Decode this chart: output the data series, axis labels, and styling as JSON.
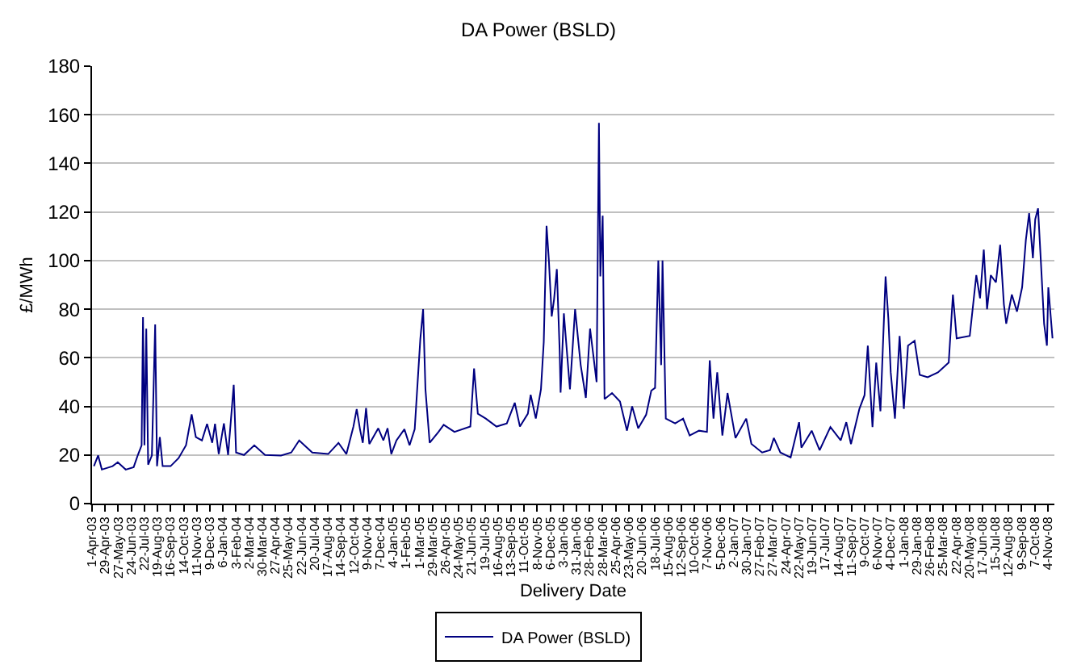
{
  "chart_data": {
    "type": "line",
    "title": "DA Power (BSLD)",
    "xlabel": "Delivery Date",
    "ylabel": "£/MWh",
    "x": [
      "2003-04-05",
      "2003-04-14",
      "2003-04-22",
      "2003-05-15",
      "2003-05-26",
      "2003-06-12",
      "2003-06-29",
      "2003-07-08",
      "2003-07-16",
      "2003-07-19",
      "2003-07-22",
      "2003-07-26",
      "2003-07-30",
      "2003-08-07",
      "2003-08-14",
      "2003-08-18",
      "2003-08-24",
      "2003-08-30",
      "2003-09-16",
      "2003-10-03",
      "2003-10-19",
      "2003-10-31",
      "2003-11-09",
      "2003-11-22",
      "2003-12-03",
      "2003-12-14",
      "2003-12-20",
      "2003-12-28",
      "2004-01-08",
      "2004-01-17",
      "2004-01-29",
      "2004-02-03",
      "2004-02-20",
      "2004-03-13",
      "2004-04-05",
      "2004-05-09",
      "2004-05-31",
      "2004-06-17",
      "2004-07-15",
      "2004-08-18",
      "2004-09-09",
      "2004-09-26",
      "2004-10-11",
      "2004-10-18",
      "2004-10-25",
      "2004-10-31",
      "2004-11-07",
      "2004-11-14",
      "2004-12-03",
      "2004-12-14",
      "2004-12-23",
      "2004-12-31",
      "2005-01-11",
      "2005-01-28",
      "2005-02-08",
      "2005-02-19",
      "2005-03-03",
      "2005-03-09",
      "2005-03-14",
      "2005-03-23",
      "2005-04-11",
      "2005-04-22",
      "2005-05-15",
      "2005-06-18",
      "2005-06-26",
      "2005-07-04",
      "2005-07-21",
      "2005-08-13",
      "2005-09-04",
      "2005-09-21",
      "2005-10-02",
      "2005-10-19",
      "2005-10-25",
      "2005-11-05",
      "2005-11-16",
      "2005-11-22",
      "2005-11-28",
      "2005-12-03",
      "2005-12-09",
      "2005-12-14",
      "2005-12-20",
      "2005-12-26",
      "2005-12-28",
      "2006-01-04",
      "2006-01-17",
      "2006-01-28",
      "2006-02-09",
      "2006-02-20",
      "2006-03-01",
      "2006-03-15",
      "2006-03-20",
      "2006-03-23",
      "2006-03-28",
      "2006-04-01",
      "2006-04-17",
      "2006-05-04",
      "2006-05-19",
      "2006-05-30",
      "2006-06-12",
      "2006-06-29",
      "2006-07-10",
      "2006-07-18",
      "2006-07-25",
      "2006-07-31",
      "2006-08-03",
      "2006-08-10",
      "2006-08-30",
      "2006-09-16",
      "2006-09-30",
      "2006-10-20",
      "2006-11-06",
      "2006-11-12",
      "2006-11-20",
      "2006-11-28",
      "2006-12-09",
      "2006-12-20",
      "2007-01-06",
      "2007-01-29",
      "2007-02-09",
      "2007-03-04",
      "2007-03-21",
      "2007-03-29",
      "2007-04-12",
      "2007-05-04",
      "2007-05-22",
      "2007-05-27",
      "2007-06-18",
      "2007-07-05",
      "2007-07-28",
      "2007-08-19",
      "2007-08-31",
      "2007-09-10",
      "2007-09-28",
      "2007-10-09",
      "2007-10-16",
      "2007-10-26",
      "2007-11-03",
      "2007-11-12",
      "2007-11-23",
      "2007-11-29",
      "2007-12-04",
      "2007-12-13",
      "2007-12-23",
      "2008-01-01",
      "2008-01-10",
      "2008-01-24",
      "2008-02-04",
      "2008-02-21",
      "2008-03-14",
      "2008-04-06",
      "2008-04-15",
      "2008-04-23",
      "2008-05-21",
      "2008-06-04",
      "2008-06-12",
      "2008-06-20",
      "2008-06-27",
      "2008-07-05",
      "2008-07-16",
      "2008-07-25",
      "2008-08-02",
      "2008-08-07",
      "2008-08-19",
      "2008-08-30",
      "2008-09-10",
      "2008-09-18",
      "2008-09-25",
      "2008-10-03",
      "2008-10-08",
      "2008-10-14",
      "2008-10-20",
      "2008-10-27",
      "2008-11-02",
      "2008-11-05",
      "2008-11-14"
    ],
    "series": [
      {
        "name": "DA Power (BSLD)",
        "color": "#000080",
        "values": [
          15.4,
          19.8,
          14,
          15.4,
          17,
          14,
          15,
          20,
          24,
          76.7,
          24,
          72,
          16,
          19.8,
          73.7,
          15.4,
          27.4,
          15.4,
          15.4,
          18.7,
          24,
          36.7,
          27.4,
          26,
          32.8,
          25,
          32.8,
          20.4,
          33,
          20,
          48.9,
          21,
          20,
          24,
          20,
          19.8,
          21,
          26,
          21,
          20.4,
          25,
          20.4,
          31.7,
          38.9,
          30.6,
          25,
          39.3,
          24.5,
          31,
          26,
          31,
          20.4,
          26,
          30.6,
          24,
          30.6,
          67.6,
          80,
          47,
          25,
          29.5,
          32.4,
          29.5,
          31.7,
          55.6,
          37,
          35,
          31.7,
          33,
          41.5,
          31.7,
          37,
          44.8,
          35,
          47,
          66.5,
          114.3,
          100,
          77,
          84,
          96.5,
          63,
          45.7,
          78.3,
          47,
          80,
          57,
          43.5,
          72,
          50,
          156.7,
          93.5,
          118.5,
          43,
          45.5,
          42,
          30,
          40,
          31,
          36.6,
          46.5,
          47.6,
          100,
          57,
          100,
          35,
          33,
          35,
          28,
          30,
          29.5,
          58.9,
          35,
          54,
          28,
          45.5,
          27,
          35,
          24.6,
          21,
          22,
          27,
          21,
          19,
          33.5,
          23,
          30,
          22,
          31.5,
          26,
          33.5,
          24.5,
          39,
          44.6,
          65,
          31.5,
          58,
          38,
          93.5,
          76,
          54,
          35,
          69,
          39,
          65,
          67,
          53,
          52,
          54,
          58,
          86,
          68,
          69,
          94,
          84.5,
          104.5,
          80,
          94,
          91,
          106.5,
          82,
          74,
          86,
          79,
          89,
          108.5,
          119.5,
          101,
          117,
          121.5,
          100,
          74,
          65,
          89,
          68
        ]
      }
    ],
    "xlim": [
      "2003-04-01",
      "2008-11-18"
    ],
    "xticks": [
      {
        "value": "2003-04-01",
        "label": "1-Apr-03"
      },
      {
        "value": "2003-04-29",
        "label": "29-Apr-03"
      },
      {
        "value": "2003-05-27",
        "label": "27-May-03"
      },
      {
        "value": "2003-06-24",
        "label": "24-Jun-03"
      },
      {
        "value": "2003-07-22",
        "label": "22-Jul-03"
      },
      {
        "value": "2003-08-19",
        "label": "19-Aug-03"
      },
      {
        "value": "2003-09-16",
        "label": "16-Sep-03"
      },
      {
        "value": "2003-10-14",
        "label": "14-Oct-03"
      },
      {
        "value": "2003-11-11",
        "label": "11-Nov-03"
      },
      {
        "value": "2003-12-09",
        "label": "9-Dec-03"
      },
      {
        "value": "2004-01-06",
        "label": "6-Jan-04"
      },
      {
        "value": "2004-02-03",
        "label": "3-Feb-04"
      },
      {
        "value": "2004-03-02",
        "label": "2-Mar-04"
      },
      {
        "value": "2004-03-30",
        "label": "30-Mar-04"
      },
      {
        "value": "2004-04-27",
        "label": "27-Apr-04"
      },
      {
        "value": "2004-05-25",
        "label": "25-May-04"
      },
      {
        "value": "2004-06-22",
        "label": "22-Jun-04"
      },
      {
        "value": "2004-07-20",
        "label": "20-Jul-04"
      },
      {
        "value": "2004-08-17",
        "label": "17-Aug-04"
      },
      {
        "value": "2004-09-14",
        "label": "14-Sep-04"
      },
      {
        "value": "2004-10-12",
        "label": "12-Oct-04"
      },
      {
        "value": "2004-11-09",
        "label": "9-Nov-04"
      },
      {
        "value": "2004-12-07",
        "label": "7-Dec-04"
      },
      {
        "value": "2005-01-04",
        "label": "4-Jan-05"
      },
      {
        "value": "2005-02-01",
        "label": "1-Feb-05"
      },
      {
        "value": "2005-03-01",
        "label": "1-Mar-05"
      },
      {
        "value": "2005-03-29",
        "label": "29-Mar-05"
      },
      {
        "value": "2005-04-26",
        "label": "26-Apr-05"
      },
      {
        "value": "2005-05-24",
        "label": "24-May-05"
      },
      {
        "value": "2005-06-21",
        "label": "21-Jun-05"
      },
      {
        "value": "2005-07-19",
        "label": "19-Jul-05"
      },
      {
        "value": "2005-08-16",
        "label": "16-Aug-05"
      },
      {
        "value": "2005-09-13",
        "label": "13-Sep-05"
      },
      {
        "value": "2005-10-11",
        "label": "11-Oct-05"
      },
      {
        "value": "2005-11-08",
        "label": "8-Nov-05"
      },
      {
        "value": "2005-12-06",
        "label": "6-Dec-05"
      },
      {
        "value": "2006-01-03",
        "label": "3-Jan-06"
      },
      {
        "value": "2006-01-31",
        "label": "31-Jan-06"
      },
      {
        "value": "2006-02-28",
        "label": "28-Feb-06"
      },
      {
        "value": "2006-03-28",
        "label": "28-Mar-06"
      },
      {
        "value": "2006-04-25",
        "label": "25-Apr-06"
      },
      {
        "value": "2006-05-23",
        "label": "23-May-06"
      },
      {
        "value": "2006-06-20",
        "label": "20-Jun-06"
      },
      {
        "value": "2006-07-18",
        "label": "18-Jul-06"
      },
      {
        "value": "2006-08-15",
        "label": "15-Aug-06"
      },
      {
        "value": "2006-09-12",
        "label": "12-Sep-06"
      },
      {
        "value": "2006-10-10",
        "label": "10-Oct-06"
      },
      {
        "value": "2006-11-07",
        "label": "7-Nov-06"
      },
      {
        "value": "2006-12-05",
        "label": "5-Dec-06"
      },
      {
        "value": "2007-01-02",
        "label": "2-Jan-07"
      },
      {
        "value": "2007-01-30",
        "label": "30-Jan-07"
      },
      {
        "value": "2007-02-27",
        "label": "27-Feb-07"
      },
      {
        "value": "2007-03-27",
        "label": "27-Mar-07"
      },
      {
        "value": "2007-04-24",
        "label": "24-Apr-07"
      },
      {
        "value": "2007-05-22",
        "label": "22-May-07"
      },
      {
        "value": "2007-06-19",
        "label": "19-Jun-07"
      },
      {
        "value": "2007-07-17",
        "label": "17-Jul-07"
      },
      {
        "value": "2007-08-14",
        "label": "14-Aug-07"
      },
      {
        "value": "2007-09-11",
        "label": "11-Sep-07"
      },
      {
        "value": "2007-10-09",
        "label": "9-Oct-07"
      },
      {
        "value": "2007-11-06",
        "label": "6-Nov-07"
      },
      {
        "value": "2007-12-04",
        "label": "4-Dec-07"
      },
      {
        "value": "2008-01-01",
        "label": "1-Jan-08"
      },
      {
        "value": "2008-01-29",
        "label": "29-Jan-08"
      },
      {
        "value": "2008-02-26",
        "label": "26-Feb-08"
      },
      {
        "value": "2008-03-25",
        "label": "25-Mar-08"
      },
      {
        "value": "2008-04-22",
        "label": "22-Apr-08"
      },
      {
        "value": "2008-05-20",
        "label": "20-May-08"
      },
      {
        "value": "2008-06-17",
        "label": "17-Jun-08"
      },
      {
        "value": "2008-07-15",
        "label": "15-Jul-08"
      },
      {
        "value": "2008-08-12",
        "label": "12-Aug-08"
      },
      {
        "value": "2008-09-09",
        "label": "9-Sep-08"
      },
      {
        "value": "2008-10-07",
        "label": "7-Oct-08"
      },
      {
        "value": "2008-11-04",
        "label": "4-Nov-08"
      }
    ],
    "ylim": [
      0,
      180
    ],
    "yticks": [
      0,
      20,
      40,
      60,
      80,
      100,
      120,
      140,
      160,
      180
    ],
    "grid": "y",
    "legend": "bottom",
    "marker": "none",
    "line_style": "solid"
  }
}
